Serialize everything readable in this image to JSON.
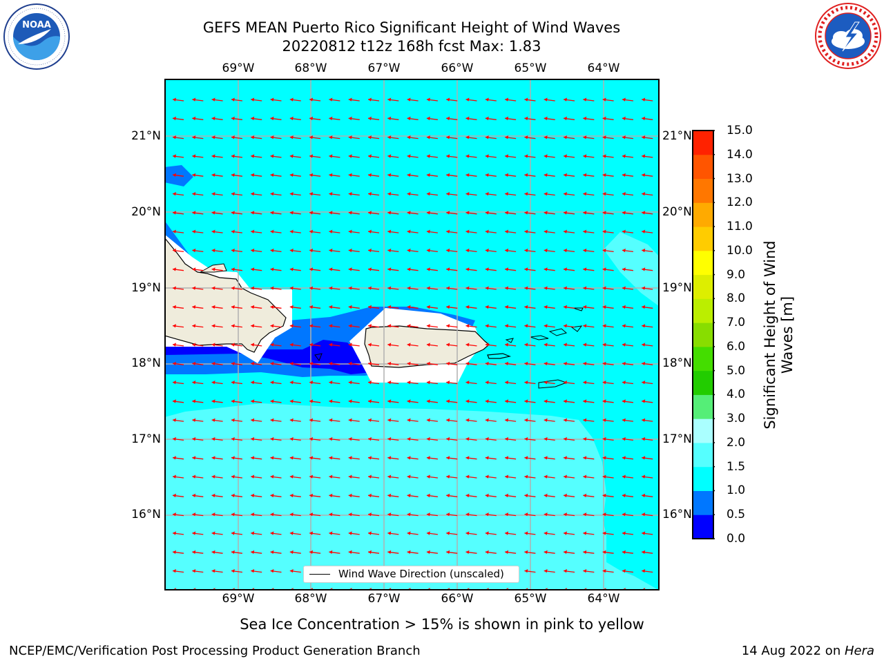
{
  "title": {
    "line1": "GEFS MEAN Puerto Rico Significant Height of Wind Waves",
    "line2": "20220812 t12z 168h fcst   Max: 1.83"
  },
  "logos": {
    "noaa_text": "NOAA",
    "noaa_ring_text": "NATIONAL OCEANIC AND ATMOSPHERIC ADMINISTRATION · U.S. DEPARTMENT OF COMMERCE",
    "nws_ring_text": "NATIONAL WEATHER SERVICE"
  },
  "map": {
    "lon_ticks": [
      "69°W",
      "68°W",
      "67°W",
      "66°W",
      "65°W",
      "64°W"
    ],
    "lat_ticks": [
      "21°N",
      "20°N",
      "19°N",
      "18°N",
      "17°N",
      "16°N"
    ],
    "ocean_color": "#00ffff",
    "land_color": "#efecdc",
    "arrow_color": "#ff0000",
    "legend_label": "Wind Wave Direction (unscaled)"
  },
  "colorbar": {
    "label": "Significant Height of Wind Waves [m]",
    "ticks": [
      "0.0",
      "0.5",
      "1.0",
      "1.5",
      "2.0",
      "3.0",
      "4.0",
      "5.0",
      "6.0",
      "7.0",
      "8.0",
      "9.0",
      "10.0",
      "11.0",
      "12.0",
      "13.0",
      "14.0",
      "15.0"
    ],
    "colors": [
      "#0000ff",
      "#0077ff",
      "#00ffff",
      "#55ffff",
      "#aaffff",
      "#55ee77",
      "#22cc00",
      "#44dd00",
      "#88dd00",
      "#bbee00",
      "#ddee00",
      "#ffff00",
      "#ffcc00",
      "#ffaa00",
      "#ff7700",
      "#ff5500",
      "#ff2200"
    ]
  },
  "caption": "Sea Ice Concentration > 15% is shown in pink to yellow",
  "footer": {
    "left": "NCEP/EMC/Verification Post Processing Product Generation Branch",
    "date": "14 Aug 2022 on ",
    "machine": "Hera"
  }
}
